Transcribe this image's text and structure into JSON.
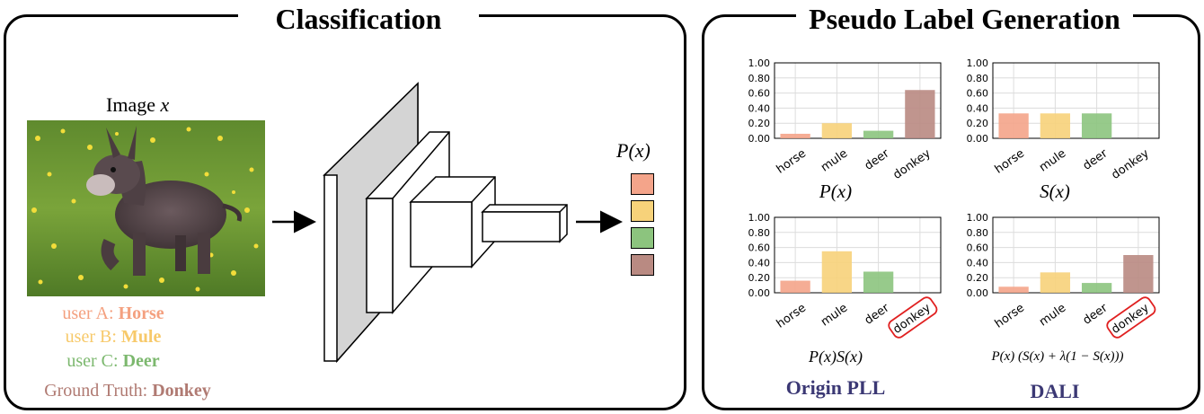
{
  "left_panel": {
    "title": "Classification",
    "image_label": "Image",
    "image_var": "x",
    "output_label": "P(x)",
    "users": [
      {
        "prefix": "user A: ",
        "label": "Horse",
        "color": "#f4a07f"
      },
      {
        "prefix": "user B: ",
        "label": "Mule",
        "color": "#f7c96a"
      },
      {
        "prefix": "user C: ",
        "label": "Deer",
        "color": "#7cb86e"
      }
    ],
    "ground_truth": {
      "prefix": "Ground Truth: ",
      "label": "Donkey",
      "color": "#b07a72"
    },
    "output_colors": [
      "#f4a48a",
      "#f7d27a",
      "#8cc47e",
      "#b98a82"
    ]
  },
  "right_panel": {
    "title": "Pseudo Label Generation",
    "methods": [
      "Origin PLL",
      "DALI"
    ]
  },
  "chart_data": [
    {
      "type": "bar",
      "categories": [
        "horse",
        "mule",
        "deer",
        "donkey"
      ],
      "values": [
        0.06,
        0.2,
        0.1,
        0.64
      ],
      "ylim": [
        0,
        1
      ],
      "yticks": [
        "0.00",
        "0.20",
        "0.40",
        "0.60",
        "0.80",
        "1.00"
      ],
      "caption": "P(x)",
      "grid": true,
      "highlight": null
    },
    {
      "type": "bar",
      "categories": [
        "horse",
        "mule",
        "deer",
        "donkey"
      ],
      "values": [
        0.33,
        0.33,
        0.33,
        0.0
      ],
      "ylim": [
        0,
        1
      ],
      "yticks": [
        "0.00",
        "0.20",
        "0.40",
        "0.60",
        "0.80",
        "1.00"
      ],
      "caption": "S(x)",
      "grid": true,
      "highlight": null
    },
    {
      "type": "bar",
      "categories": [
        "horse",
        "mule",
        "deer",
        "donkey"
      ],
      "values": [
        0.16,
        0.55,
        0.28,
        0.0
      ],
      "ylim": [
        0,
        1
      ],
      "yticks": [
        "0.00",
        "0.20",
        "0.40",
        "0.60",
        "0.80",
        "1.00"
      ],
      "caption": "P(x)S(x)",
      "grid": true,
      "highlight": "donkey"
    },
    {
      "type": "bar",
      "categories": [
        "horse",
        "mule",
        "deer",
        "donkey"
      ],
      "values": [
        0.08,
        0.27,
        0.13,
        0.5
      ],
      "ylim": [
        0,
        1
      ],
      "yticks": [
        "0.00",
        "0.20",
        "0.40",
        "0.60",
        "0.80",
        "1.00"
      ],
      "caption": "P(x) (S(x) + λ(1 − S(x)))",
      "grid": true,
      "highlight": "donkey"
    }
  ],
  "bar_colors": [
    "#f4a48a",
    "#f7d27a",
    "#8cc47e",
    "#b98a82"
  ],
  "highlight_color": "#e02020"
}
